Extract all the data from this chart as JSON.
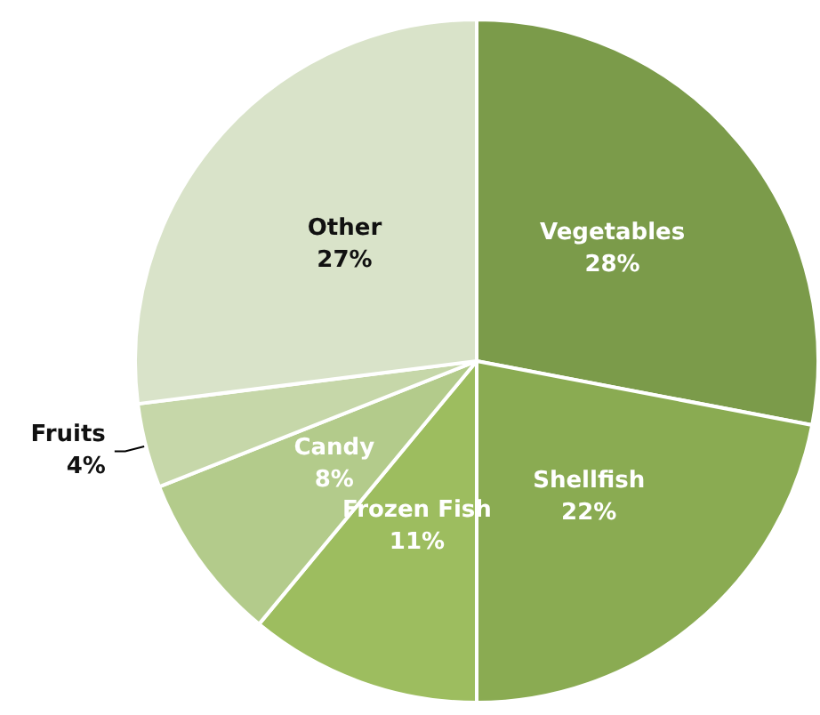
{
  "chart_data": {
    "type": "pie",
    "categories": [
      "Vegetables",
      "Shellfish",
      "Frozen Fish",
      "Candy",
      "Fruits",
      "Other"
    ],
    "values": [
      28,
      22,
      11,
      8,
      4,
      27
    ],
    "colors": [
      "#7b9b4a",
      "#8aab52",
      "#9dbd5f",
      "#b3cb8b",
      "#c6d7a9",
      "#d9e3c9"
    ],
    "value_labels": [
      "28%",
      "22%",
      "11%",
      "8%",
      "4%",
      "27%"
    ],
    "legend": false
  }
}
